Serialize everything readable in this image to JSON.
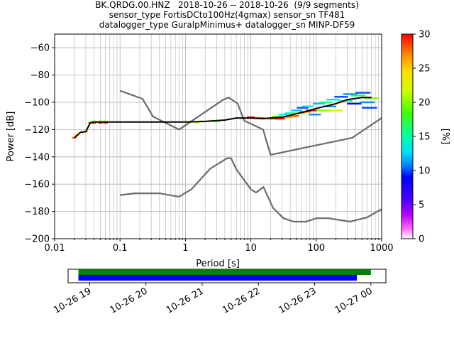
{
  "title": {
    "line1": "BK.QRDG.00.HNZ   2018-10-26 -- 2018-10-26  (9/9 segments)",
    "line2": "sensor_type FortisDCto100Hz(4gmax) sensor_sn TF481",
    "line3": "datalogger_type GuralpMinimus+ datalogger_sn MINP-DF59"
  },
  "colors": {
    "model_line": "#6b6b6b",
    "mode_line": "#000000",
    "coverage_green": "#008000",
    "coverage_blue": "#0000ff"
  },
  "chart_data": {
    "type": "line",
    "xlabel": "Period [s]",
    "ylabel": "Power [dB]",
    "xscale": "log",
    "xlim": [
      0.01,
      1000
    ],
    "ylim": [
      -200,
      -50
    ],
    "xticks": [
      0.01,
      0.1,
      1,
      10,
      100,
      1000
    ],
    "xtick_labels": [
      "0.01",
      "0.1",
      "1",
      "10",
      "100",
      "1000"
    ],
    "yticks": [
      -200,
      -180,
      -160,
      -140,
      -120,
      -100,
      -80,
      -60
    ],
    "ytick_labels": [
      "−200",
      "−180",
      "−160",
      "−140",
      "−120",
      "−100",
      "−80",
      "−60"
    ],
    "grid": true,
    "colorbar": {
      "label": "[%]",
      "range": [
        0,
        30
      ],
      "ticks": [
        0,
        5,
        10,
        15,
        20,
        25,
        30
      ],
      "tick_labels": [
        "0",
        "5",
        "10",
        "15",
        "20",
        "25",
        "30"
      ],
      "colormap": "pqlx"
    },
    "series": [
      {
        "role": "high_noise_model",
        "x": [
          0.1,
          0.22,
          0.32,
          0.8,
          3.8,
          4.6,
          6.3,
          7.9,
          15.4,
          20,
          354.8,
          1000
        ],
        "y": [
          -91.5,
          -97.4,
          -110.5,
          -120,
          -98,
          -96.5,
          -101,
          -113.5,
          -120,
          -138.5,
          -126,
          -111.5
        ]
      },
      {
        "role": "low_noise_model",
        "x": [
          0.1,
          0.17,
          0.4,
          0.8,
          1.24,
          2.4,
          4.3,
          5.0,
          6.0,
          10,
          12,
          15.6,
          21.9,
          31.6,
          45,
          70,
          101,
          154,
          328,
          600,
          1000
        ],
        "y": [
          -168,
          -166.7,
          -166.7,
          -169.2,
          -163.7,
          -148.6,
          -141.1,
          -141.1,
          -149,
          -163.8,
          -166.2,
          -162.1,
          -177.5,
          -185,
          -187.5,
          -187.5,
          -185,
          -185,
          -187.5,
          -184.4,
          -178.3
        ]
      },
      {
        "role": "mode",
        "x": [
          0.02,
          0.025,
          0.03,
          0.035,
          0.04,
          0.06,
          0.1,
          0.3,
          1,
          2,
          4,
          6,
          10,
          15,
          20,
          30,
          40,
          60,
          80,
          100,
          150,
          200,
          300,
          500,
          700
        ],
        "y": [
          -126,
          -122,
          -121.5,
          -115,
          -114.5,
          -114.5,
          -114.5,
          -114.5,
          -114.5,
          -114,
          -113,
          -111.5,
          -111.5,
          -112,
          -111.5,
          -111,
          -109.5,
          -107.5,
          -106,
          -104.5,
          -102.5,
          -101,
          -98,
          -96.5,
          -96.5
        ]
      }
    ],
    "density_cells": [
      {
        "x": 0.02,
        "y": -126,
        "pct": 28
      },
      {
        "x": 0.022,
        "y": -124,
        "pct": 25
      },
      {
        "x": 0.025,
        "y": -122,
        "pct": 24
      },
      {
        "x": 0.03,
        "y": -121.5,
        "pct": 26
      },
      {
        "x": 0.035,
        "y": -115,
        "pct": 27
      },
      {
        "x": 0.04,
        "y": -114,
        "pct": 20
      },
      {
        "x": 0.05,
        "y": -114,
        "pct": 20
      },
      {
        "x": 0.06,
        "y": -114,
        "pct": 20
      },
      {
        "x": 0.04,
        "y": -115,
        "pct": 30
      },
      {
        "x": 0.05,
        "y": -115,
        "pct": 30
      },
      {
        "x": 0.06,
        "y": -115,
        "pct": 30
      },
      {
        "x": 1.2,
        "y": -114,
        "pct": 22
      },
      {
        "x": 1.5,
        "y": -115,
        "pct": 22
      },
      {
        "x": 1.8,
        "y": -114,
        "pct": 20
      },
      {
        "x": 2.5,
        "y": -113.5,
        "pct": 24
      },
      {
        "x": 3.0,
        "y": -114,
        "pct": 20
      },
      {
        "x": 10,
        "y": -111,
        "pct": 30
      },
      {
        "x": 14,
        "y": -111.5,
        "pct": 28
      },
      {
        "x": 18,
        "y": -112,
        "pct": 22
      },
      {
        "x": 22,
        "y": -112,
        "pct": 28
      },
      {
        "x": 25,
        "y": -110.5,
        "pct": 18
      },
      {
        "x": 28,
        "y": -112,
        "pct": 30
      },
      {
        "x": 32,
        "y": -109,
        "pct": 14
      },
      {
        "x": 36,
        "y": -111,
        "pct": 26
      },
      {
        "x": 40,
        "y": -108,
        "pct": 15
      },
      {
        "x": 45,
        "y": -110,
        "pct": 28
      },
      {
        "x": 50,
        "y": -106,
        "pct": 12
      },
      {
        "x": 56,
        "y": -108,
        "pct": 20
      },
      {
        "x": 62,
        "y": -104,
        "pct": 10
      },
      {
        "x": 68,
        "y": -107,
        "pct": 27
      },
      {
        "x": 75,
        "y": -103,
        "pct": 13
      },
      {
        "x": 85,
        "y": -106,
        "pct": 30
      },
      {
        "x": 95,
        "y": -109,
        "pct": 11
      },
      {
        "x": 110,
        "y": -101,
        "pct": 12
      },
      {
        "x": 125,
        "y": -106,
        "pct": 20
      },
      {
        "x": 140,
        "y": -100,
        "pct": 17
      },
      {
        "x": 160,
        "y": -103,
        "pct": 11
      },
      {
        "x": 180,
        "y": -98,
        "pct": 13
      },
      {
        "x": 200,
        "y": -106,
        "pct": 22
      },
      {
        "x": 240,
        "y": -96,
        "pct": 10
      },
      {
        "x": 280,
        "y": -99,
        "pct": 15
      },
      {
        "x": 330,
        "y": -94,
        "pct": 11
      },
      {
        "x": 380,
        "y": -101,
        "pct": 9
      },
      {
        "x": 440,
        "y": -95,
        "pct": 18
      },
      {
        "x": 520,
        "y": -93,
        "pct": 10
      },
      {
        "x": 600,
        "y": -100,
        "pct": 11
      },
      {
        "x": 650,
        "y": -104,
        "pct": 10
      },
      {
        "x": 700,
        "y": -97,
        "pct": 20
      }
    ],
    "coverage": {
      "time_tick_labels": [
        "10-26 19",
        "10-26 20",
        "10-26 21",
        "10-26 22",
        "10-26 23",
        "10-27 00"
      ],
      "bars": [
        {
          "color_key": "coverage_green",
          "start": "10-26 18:48",
          "end": "10-27 00:00"
        },
        {
          "color_key": "coverage_blue",
          "start": "10-26 18:48",
          "end": "10-26 23:45"
        }
      ]
    }
  }
}
